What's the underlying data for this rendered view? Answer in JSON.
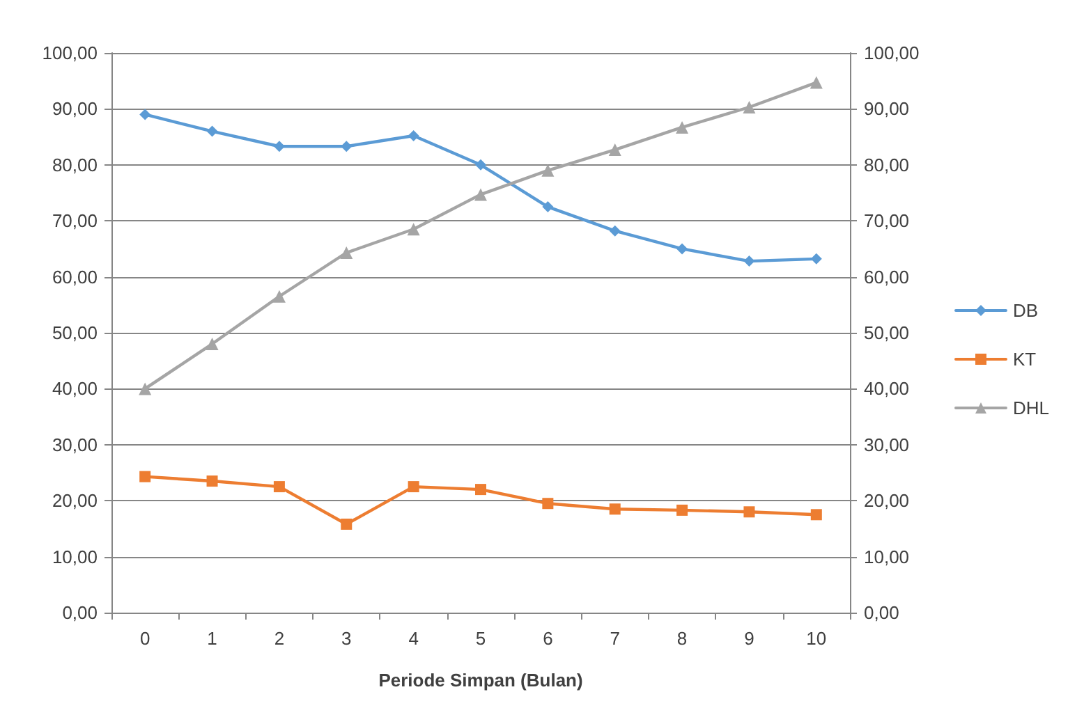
{
  "chart_data": {
    "type": "line",
    "xlabel": "Periode Simpan (Bulan)",
    "categories": [
      "0",
      "1",
      "2",
      "3",
      "4",
      "5",
      "6",
      "7",
      "8",
      "9",
      "10"
    ],
    "series": [
      {
        "name": "DB",
        "color": "#5b9bd5",
        "marker": "diamond",
        "values": [
          89,
          86,
          83.3,
          83.3,
          85.2,
          80,
          72.5,
          68.2,
          65,
          62.8,
          63.2
        ]
      },
      {
        "name": "KT",
        "color": "#ed7d31",
        "marker": "square",
        "values": [
          24.3,
          23.5,
          22.5,
          15.8,
          22.5,
          22,
          19.5,
          18.5,
          18.3,
          18,
          17.5
        ]
      },
      {
        "name": "DHL",
        "color": "#a5a5a5",
        "marker": "triangle",
        "axis": "y2",
        "values": [
          40,
          48,
          56.5,
          64.3,
          68.5,
          74.7,
          79,
          82.7,
          86.7,
          90.3,
          94.7
        ]
      }
    ],
    "ylim": [
      0,
      100
    ],
    "yticks": [
      {
        "value": 0,
        "label": "0,00"
      },
      {
        "value": 10,
        "label": "10,00"
      },
      {
        "value": 20,
        "label": "20,00"
      },
      {
        "value": 30,
        "label": "30,00"
      },
      {
        "value": 40,
        "label": "40,00"
      },
      {
        "value": 50,
        "label": "50,00"
      },
      {
        "value": 60,
        "label": "60,00"
      },
      {
        "value": 70,
        "label": "70,00"
      },
      {
        "value": 80,
        "label": "80,00"
      },
      {
        "value": 90,
        "label": "90,00"
      },
      {
        "value": 100,
        "label": "100,00"
      }
    ],
    "y2lim": [
      0,
      100
    ],
    "y2ticks": [
      {
        "value": 0,
        "label": "0,00"
      },
      {
        "value": 10,
        "label": "10,00"
      },
      {
        "value": 20,
        "label": "20,00"
      },
      {
        "value": 30,
        "label": "30,00"
      },
      {
        "value": 40,
        "label": "40,00"
      },
      {
        "value": 50,
        "label": "50,00"
      },
      {
        "value": 60,
        "label": "60,00"
      },
      {
        "value": 70,
        "label": "70,00"
      },
      {
        "value": 80,
        "label": "80,00"
      },
      {
        "value": 90,
        "label": "90,00"
      },
      {
        "value": 100,
        "label": "100,00"
      }
    ],
    "grid": "y",
    "legend": "right",
    "line_style": "solid"
  }
}
